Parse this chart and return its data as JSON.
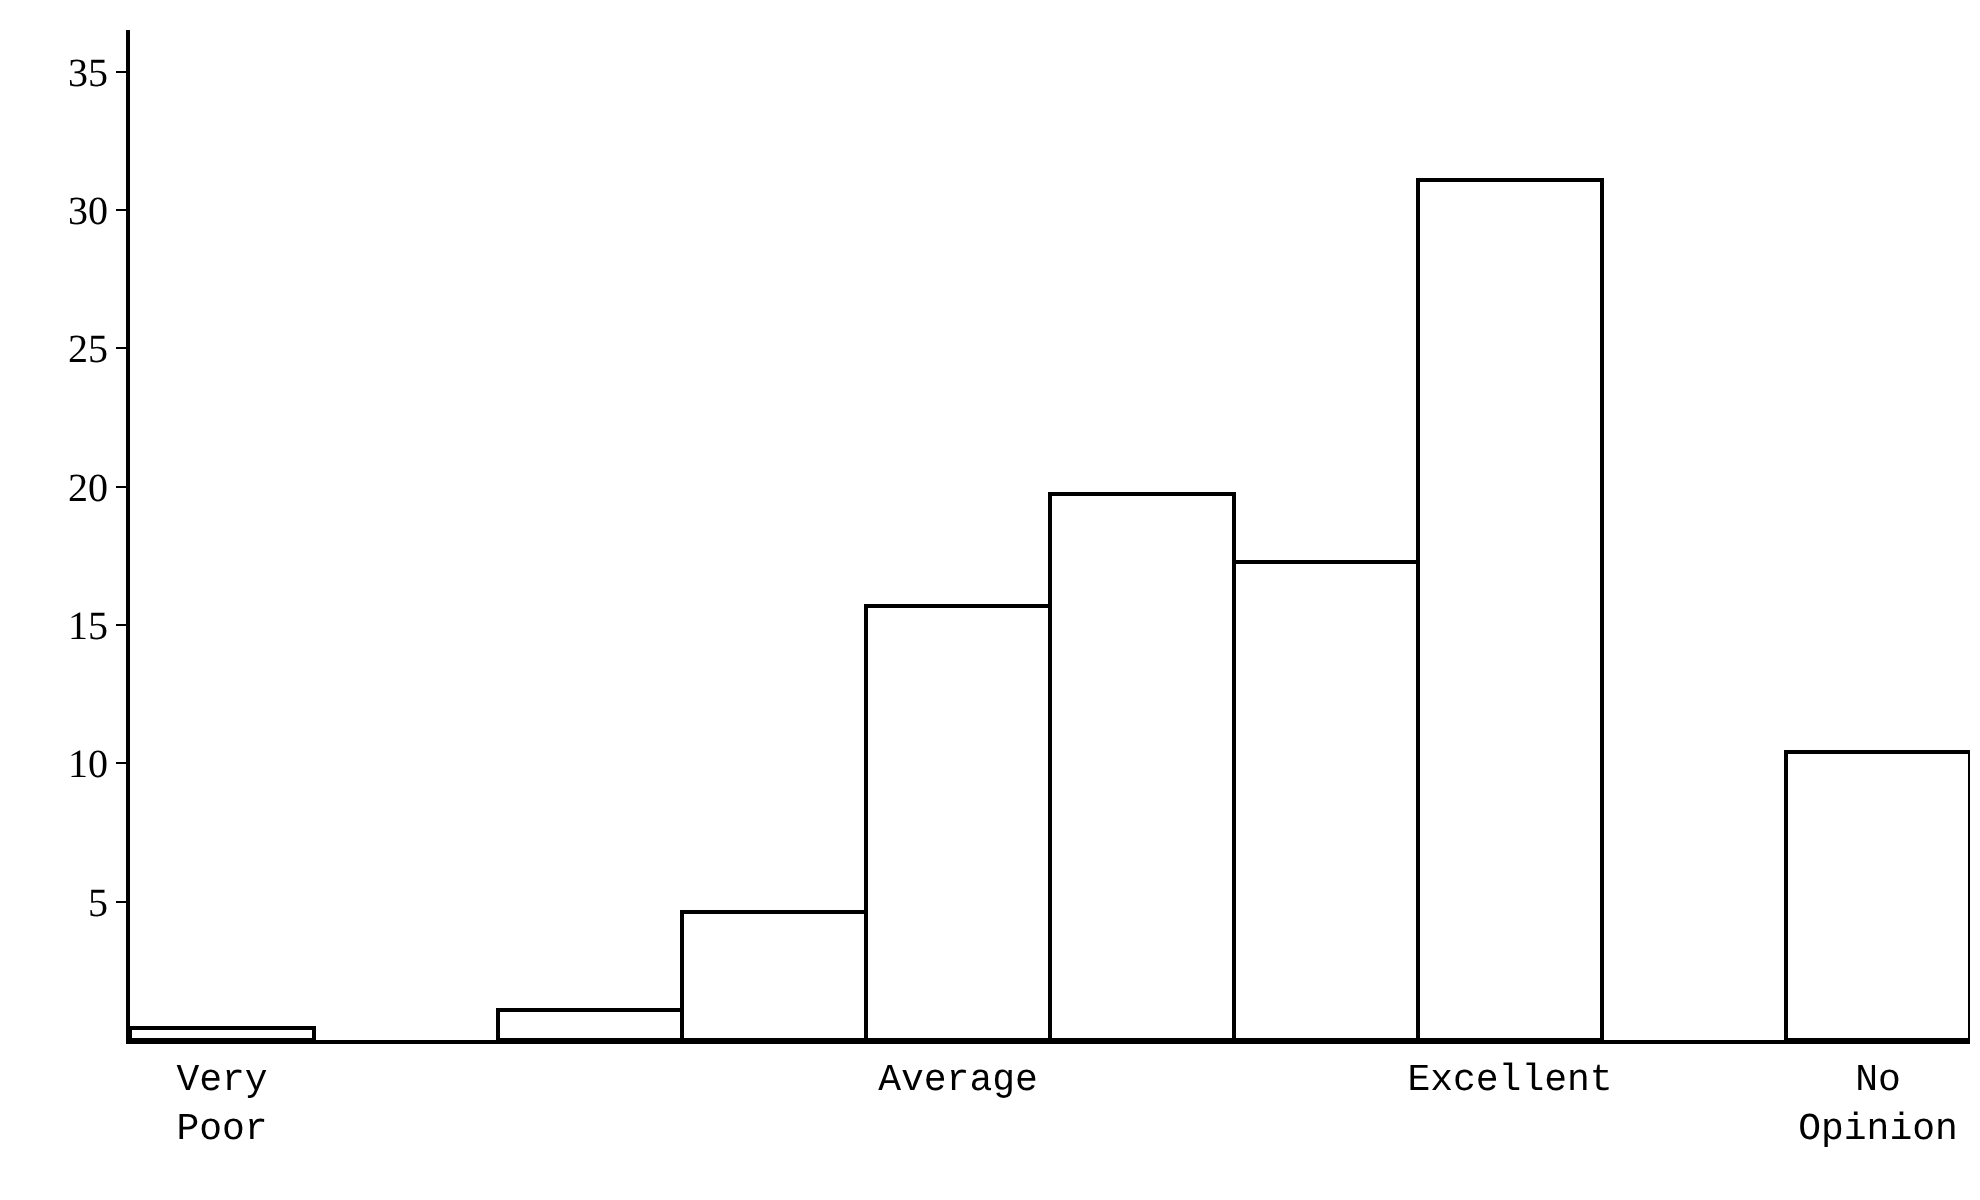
{
  "chart_data": {
    "type": "bar",
    "categories": [
      "Very Poor",
      null,
      null,
      null,
      "Average",
      null,
      null,
      "Excellent",
      null,
      "No Opinion"
    ],
    "values": [
      0.4,
      null,
      1.1,
      4.6,
      15.7,
      19.7,
      17.3,
      31.1,
      null,
      10.4
    ],
    "color": "#ffffff",
    "ylim": [
      0,
      36.5
    ],
    "yticks": [
      5,
      10,
      15,
      20,
      25,
      30,
      35
    ],
    "grid": false
  }
}
